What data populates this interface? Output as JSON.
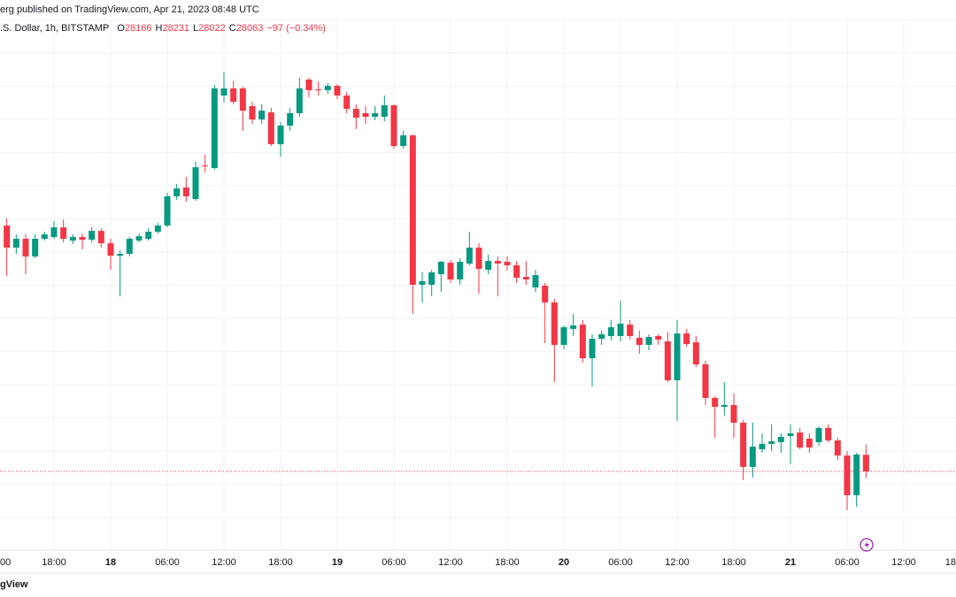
{
  "chart_data": {
    "type": "candlestick",
    "title": "erg published on TradingView.com, Apr 21, 2023 08:48 UTC",
    "symbol": ".S. Dollar, 1h, BITSTAMP",
    "ohlc_prefixes": [
      "O",
      "H",
      "L",
      "C"
    ],
    "change_label": "−97 (−0.34%)",
    "watermark": "gView",
    "up_color": "#089981",
    "down_color": "#f23645",
    "grid": true,
    "categories": [
      "00",
      null,
      null,
      null,
      null,
      null,
      "18:00",
      null,
      null,
      null,
      null,
      null,
      "18",
      null,
      null,
      null,
      null,
      null,
      "06:00",
      null,
      null,
      null,
      null,
      null,
      "12:00",
      null,
      null,
      null,
      null,
      null,
      "18:00",
      null,
      null,
      null,
      null,
      null,
      "19",
      null,
      null,
      null,
      null,
      null,
      "06:00",
      null,
      null,
      null,
      null,
      null,
      "12:00",
      null,
      null,
      null,
      null,
      null,
      "18:00",
      null,
      null,
      null,
      null,
      null,
      "20",
      null,
      null,
      null,
      null,
      null,
      "06:00",
      null,
      null,
      null,
      null,
      null,
      "12:00",
      null,
      null,
      null,
      null,
      null,
      "18:00",
      null,
      null,
      null,
      null,
      null,
      "21",
      null,
      null,
      null,
      null,
      null,
      "06:00",
      null,
      null,
      null,
      null,
      null,
      "12:00",
      null,
      null,
      null,
      null,
      null,
      "18"
    ],
    "open": [
      null,
      29592,
      29455,
      29510,
      29400,
      29510,
      29521,
      29581,
      29499,
      29521,
      29504,
      29559,
      29482,
      29405,
      29416,
      29499,
      29510,
      29554,
      29592,
      29774,
      29829,
      29757,
      29966,
      29950,
      30401,
      30445,
      30445,
      30335,
      30252,
      30296,
      30098,
      30214,
      30291,
      30500,
      30439,
      30434,
      30461,
      30401,
      30318,
      30291,
      30269,
      30269,
      30340,
      30087,
      30153,
      29224,
      29224,
      29290,
      29361,
      29257,
      29356,
      29455,
      29317,
      29372,
      29367,
      29345,
      29273,
      29207,
      29218,
      29114,
      28850,
      28949,
      28976,
      28767,
      28888,
      28905,
      28905,
      28976,
      28894,
      28850,
      28905,
      28872,
      28630,
      28921,
      28866,
      28729,
      28520,
      28465,
      28476,
      28366,
      28091,
      28201,
      28234,
      28245,
      28283,
      28305,
      28267,
      28245,
      28333,
      28256,
      28162,
      27915,
      28166,
      null,
      null,
      null,
      null,
      null,
      null,
      null,
      null,
      null,
      null
    ],
    "high": [
      null,
      29636,
      29537,
      29537,
      29537,
      29554,
      29620,
      29631,
      29537,
      29543,
      29581,
      29576,
      29510,
      29438,
      29521,
      29543,
      29576,
      29609,
      29796,
      29851,
      29895,
      29988,
      30032,
      30467,
      30544,
      30489,
      30456,
      30362,
      30346,
      30324,
      30236,
      30324,
      30511,
      30511,
      30489,
      30478,
      30472,
      30423,
      30346,
      30335,
      30335,
      30401,
      30346,
      30181,
      30159,
      29301,
      29317,
      29372,
      29378,
      29389,
      29554,
      29482,
      29411,
      29400,
      29400,
      29372,
      29372,
      29317,
      29235,
      29136,
      28971,
      29042,
      29004,
      28916,
      28938,
      29004,
      29125,
      29004,
      28938,
      28916,
      28916,
      28932,
      29004,
      28949,
      28905,
      28751,
      28531,
      28619,
      28547,
      28382,
      28366,
      28300,
      28355,
      28300,
      28355,
      28333,
      28300,
      28344,
      28355,
      28272,
      28190,
      28179,
      28231,
      null,
      null,
      null,
      null,
      null,
      null,
      null,
      null,
      null,
      null
    ],
    "low": [
      null,
      29279,
      29416,
      29290,
      29389,
      29499,
      29510,
      29488,
      29477,
      29444,
      29488,
      29455,
      29317,
      29152,
      29400,
      29488,
      29499,
      29543,
      29581,
      29752,
      29741,
      29746,
      29922,
      29939,
      30357,
      30346,
      30181,
      30225,
      30225,
      30087,
      30021,
      30181,
      30269,
      30390,
      30401,
      30412,
      30379,
      30291,
      30192,
      30225,
      30247,
      30241,
      30071,
      30071,
      29042,
      29114,
      29152,
      29180,
      29235,
      29224,
      29345,
      29169,
      29290,
      29152,
      29312,
      29235,
      29224,
      29180,
      28861,
      28619,
      28822,
      28905,
      28740,
      28591,
      28850,
      28877,
      28872,
      28883,
      28795,
      28817,
      28850,
      28619,
      28377,
      28839,
      28712,
      28476,
      28272,
      28410,
      28272,
      28008,
      28025,
      28179,
      28190,
      28179,
      28107,
      28201,
      28179,
      28223,
      28245,
      28135,
      27821,
      27843,
      28022,
      null,
      null,
      null,
      null,
      null,
      null,
      null,
      null,
      null,
      null
    ],
    "close": [
      null,
      29455,
      29510,
      29400,
      29510,
      29537,
      29581,
      29510,
      29521,
      29504,
      29559,
      29482,
      29405,
      29416,
      29510,
      29526,
      29554,
      29592,
      29774,
      29823,
      29774,
      29955,
      29961,
      30445,
      30445,
      30362,
      30307,
      30252,
      30307,
      30098,
      30214,
      30291,
      30445,
      30434,
      30434,
      30461,
      30401,
      30318,
      30263,
      30269,
      30291,
      30340,
      30087,
      30153,
      29224,
      29246,
      29301,
      29367,
      29257,
      29367,
      29455,
      29323,
      29372,
      29356,
      29345,
      29268,
      29257,
      29284,
      29114,
      28850,
      28960,
      28971,
      28767,
      28888,
      28916,
      28960,
      28982,
      28905,
      28850,
      28899,
      28883,
      28630,
      28921,
      28855,
      28729,
      28520,
      28465,
      28476,
      28366,
      28091,
      28217,
      28234,
      28250,
      28278,
      28300,
      28212,
      28212,
      28333,
      28256,
      28162,
      27915,
      28168,
      28063,
      null,
      null,
      null,
      null,
      null,
      null,
      null,
      null,
      null,
      null
    ]
  }
}
